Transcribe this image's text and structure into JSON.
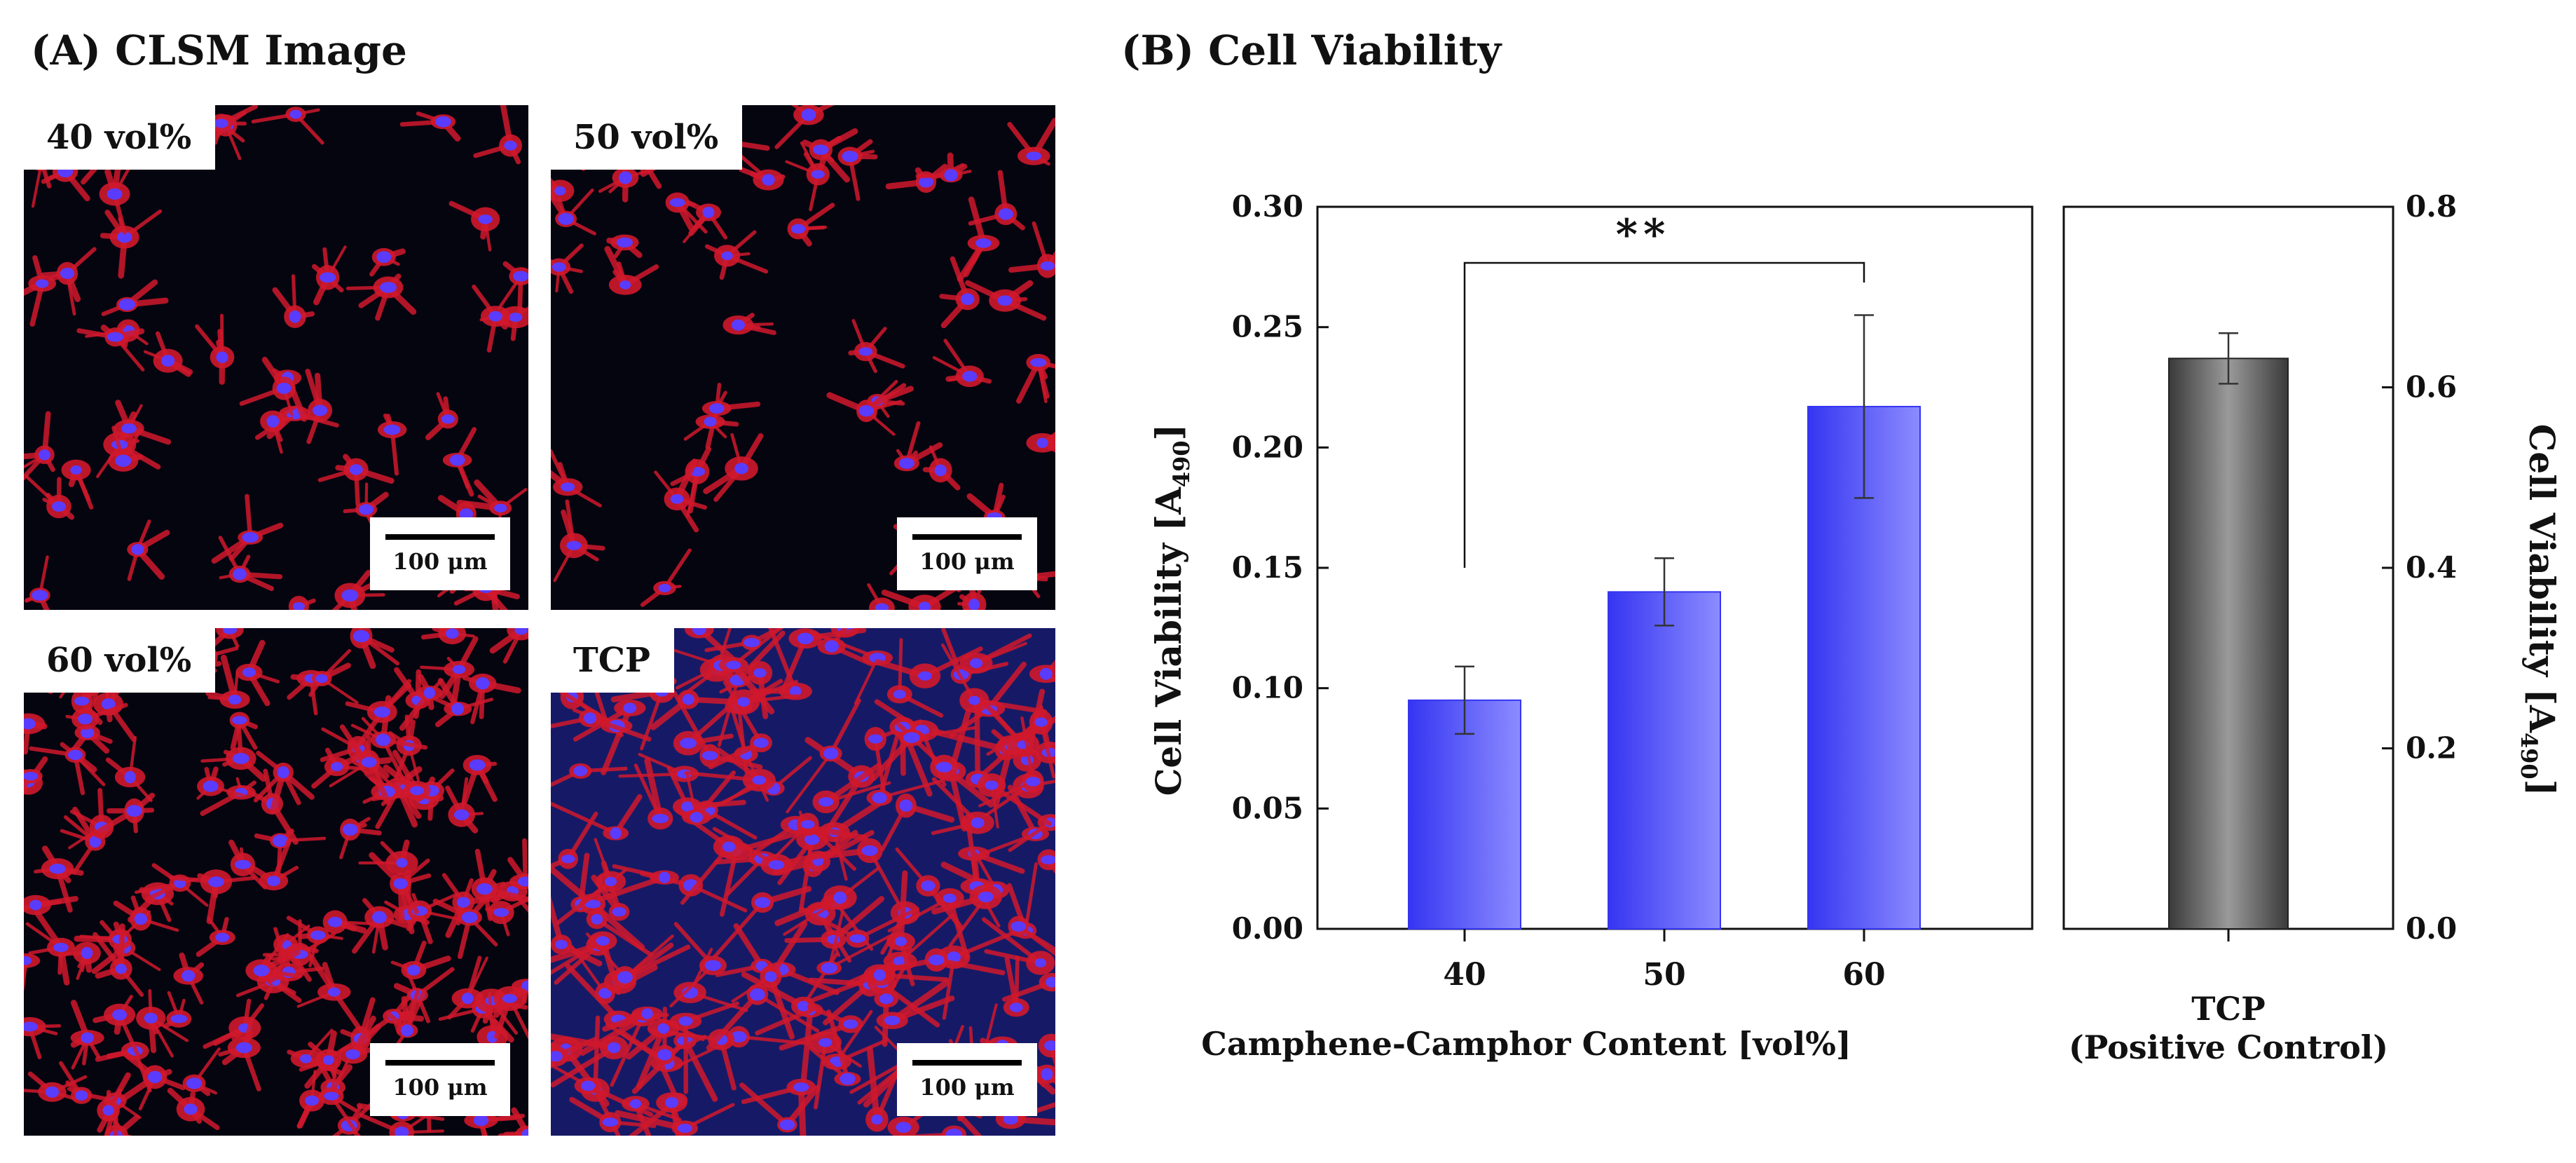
{
  "panels": {
    "a_title": "(A) CLSM Image",
    "b_title": "(B) Cell Viability"
  },
  "micrographs": [
    {
      "label": "40 vol%",
      "scale": "100 μm",
      "density": "sparse"
    },
    {
      "label": "50 vol%",
      "scale": "100 μm",
      "density": "sparse"
    },
    {
      "label": "60 vol%",
      "scale": "100 μm",
      "density": "dense"
    },
    {
      "label": "TCP",
      "scale": "100 μm",
      "density": "confluent"
    }
  ],
  "colors": {
    "bar_blue": "#3535f2",
    "bar_blue_light": "#8c8cff",
    "bar_gray_dark": "#3a3a3a",
    "bar_gray_light": "#9a9a9a",
    "cell_red": "#d0182c",
    "nucleus_blue": "#5a3cff"
  },
  "chart_data": [
    {
      "type": "bar",
      "title": "(B) Cell Viability",
      "categories": [
        "40",
        "50",
        "60"
      ],
      "values": [
        0.095,
        0.14,
        0.217
      ],
      "errors": [
        0.014,
        0.014,
        0.038
      ],
      "xlabel": "Camphene-Camphor Content [vol%]",
      "ylabel_main": "Cell Viability [A",
      "ylabel_sub": "490",
      "ylabel_end": "]",
      "ylim": [
        0,
        0.3
      ],
      "yticks": [
        "0.00",
        "0.05",
        "0.10",
        "0.15",
        "0.20",
        "0.25",
        "0.30"
      ],
      "annotation": "**",
      "annotation_between": [
        "40",
        "60"
      ]
    },
    {
      "type": "bar",
      "categories": [
        "TCP"
      ],
      "category_sub": "(Positive Control)",
      "values": [
        0.632
      ],
      "errors": [
        0.028
      ],
      "ylim": [
        0,
        0.8
      ],
      "yticks": [
        "0.0",
        "0.2",
        "0.4",
        "0.6",
        "0.8"
      ],
      "ylabel_main": "Cell Viability [A",
      "ylabel_sub": "490",
      "ylabel_end": "]",
      "ylabel_side": "right"
    }
  ]
}
